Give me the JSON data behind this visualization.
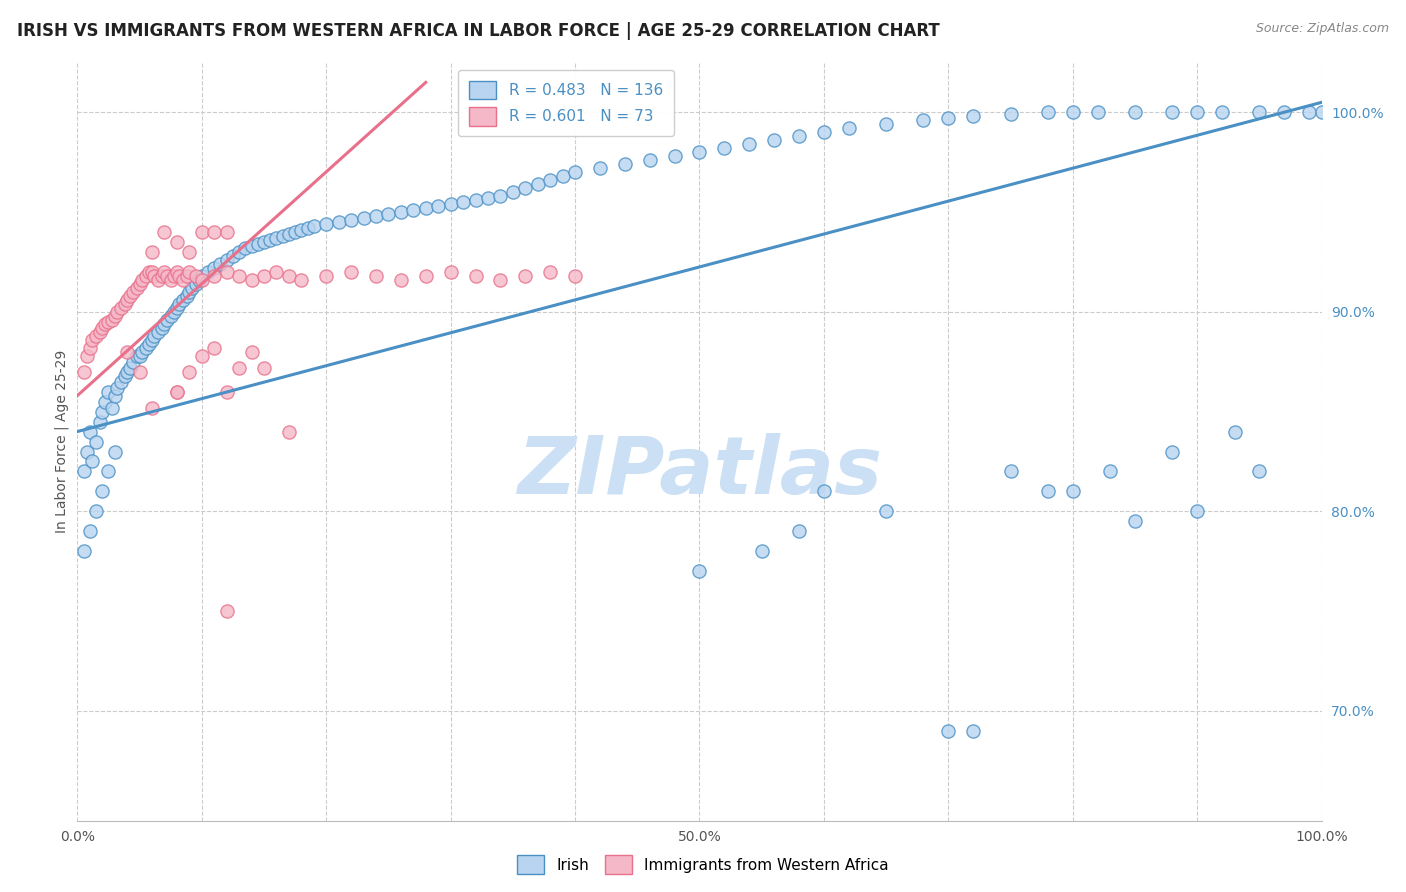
{
  "title": "IRISH VS IMMIGRANTS FROM WESTERN AFRICA IN LABOR FORCE | AGE 25-29 CORRELATION CHART",
  "source": "Source: ZipAtlas.com",
  "ylabel": "In Labor Force | Age 25-29",
  "xlim": [
    0.0,
    1.0
  ],
  "ylim": [
    0.645,
    1.025
  ],
  "x_ticks": [
    0.0,
    0.1,
    0.2,
    0.3,
    0.4,
    0.5,
    0.6,
    0.7,
    0.8,
    0.9,
    1.0
  ],
  "x_tick_labels": [
    "0.0%",
    "",
    "",
    "",
    "",
    "50.0%",
    "",
    "",
    "",
    "",
    "100.0%"
  ],
  "y_tick_vals_right": [
    0.7,
    0.8,
    0.9,
    1.0
  ],
  "blue_color": "#4a90c4",
  "pink_color": "#e8708a",
  "blue_scatter_color": "#b8d4f0",
  "pink_scatter_color": "#f5b8c8",
  "watermark": "ZIPatlas",
  "watermark_color": "#cce0f5",
  "blue_R": 0.483,
  "blue_N": 136,
  "pink_R": 0.601,
  "pink_N": 73,
  "blue_line_x": [
    0.0,
    1.0
  ],
  "blue_line_y": [
    0.84,
    1.005
  ],
  "pink_line_x": [
    0.0,
    0.28
  ],
  "pink_line_y": [
    0.858,
    1.015
  ],
  "blue_scatter_x": [
    0.005,
    0.008,
    0.01,
    0.012,
    0.015,
    0.018,
    0.02,
    0.022,
    0.025,
    0.028,
    0.03,
    0.032,
    0.035,
    0.038,
    0.04,
    0.042,
    0.045,
    0.048,
    0.05,
    0.052,
    0.055,
    0.058,
    0.06,
    0.062,
    0.065,
    0.068,
    0.07,
    0.072,
    0.075,
    0.078,
    0.08,
    0.082,
    0.085,
    0.088,
    0.09,
    0.092,
    0.095,
    0.098,
    0.1,
    0.105,
    0.11,
    0.115,
    0.12,
    0.125,
    0.13,
    0.135,
    0.14,
    0.145,
    0.15,
    0.155,
    0.16,
    0.165,
    0.17,
    0.175,
    0.18,
    0.185,
    0.19,
    0.2,
    0.21,
    0.22,
    0.23,
    0.24,
    0.25,
    0.26,
    0.27,
    0.28,
    0.29,
    0.3,
    0.31,
    0.32,
    0.33,
    0.34,
    0.35,
    0.36,
    0.37,
    0.38,
    0.39,
    0.4,
    0.42,
    0.44,
    0.46,
    0.48,
    0.5,
    0.52,
    0.54,
    0.56,
    0.58,
    0.6,
    0.62,
    0.65,
    0.68,
    0.7,
    0.72,
    0.75,
    0.78,
    0.8,
    0.82,
    0.85,
    0.88,
    0.9,
    0.92,
    0.95,
    0.97,
    0.99,
    1.0,
    0.6,
    0.65,
    0.7,
    0.75,
    0.8,
    0.85,
    0.9,
    0.95,
    0.72,
    0.78,
    0.83,
    0.88,
    0.93,
    0.5,
    0.55,
    0.58,
    0.005,
    0.01,
    0.015,
    0.02,
    0.025,
    0.03
  ],
  "blue_scatter_y": [
    0.82,
    0.83,
    0.84,
    0.825,
    0.835,
    0.845,
    0.85,
    0.855,
    0.86,
    0.852,
    0.858,
    0.862,
    0.865,
    0.868,
    0.87,
    0.872,
    0.875,
    0.878,
    0.878,
    0.88,
    0.882,
    0.884,
    0.886,
    0.888,
    0.89,
    0.892,
    0.894,
    0.896,
    0.898,
    0.9,
    0.902,
    0.904,
    0.906,
    0.908,
    0.91,
    0.912,
    0.914,
    0.916,
    0.918,
    0.92,
    0.922,
    0.924,
    0.926,
    0.928,
    0.93,
    0.932,
    0.933,
    0.934,
    0.935,
    0.936,
    0.937,
    0.938,
    0.939,
    0.94,
    0.941,
    0.942,
    0.943,
    0.944,
    0.945,
    0.946,
    0.947,
    0.948,
    0.949,
    0.95,
    0.951,
    0.952,
    0.953,
    0.954,
    0.955,
    0.956,
    0.957,
    0.958,
    0.96,
    0.962,
    0.964,
    0.966,
    0.968,
    0.97,
    0.972,
    0.974,
    0.976,
    0.978,
    0.98,
    0.982,
    0.984,
    0.986,
    0.988,
    0.99,
    0.992,
    0.994,
    0.996,
    0.997,
    0.998,
    0.999,
    1.0,
    1.0,
    1.0,
    1.0,
    1.0,
    1.0,
    1.0,
    1.0,
    1.0,
    1.0,
    1.0,
    0.81,
    0.8,
    0.69,
    0.82,
    0.81,
    0.795,
    0.8,
    0.82,
    0.69,
    0.81,
    0.82,
    0.83,
    0.84,
    0.77,
    0.78,
    0.79,
    0.78,
    0.79,
    0.8,
    0.81,
    0.82,
    0.83
  ],
  "pink_scatter_x": [
    0.005,
    0.008,
    0.01,
    0.012,
    0.015,
    0.018,
    0.02,
    0.022,
    0.025,
    0.028,
    0.03,
    0.032,
    0.035,
    0.038,
    0.04,
    0.042,
    0.045,
    0.048,
    0.05,
    0.052,
    0.055,
    0.058,
    0.06,
    0.062,
    0.065,
    0.068,
    0.07,
    0.072,
    0.075,
    0.078,
    0.08,
    0.082,
    0.085,
    0.088,
    0.09,
    0.095,
    0.1,
    0.11,
    0.12,
    0.13,
    0.14,
    0.15,
    0.16,
    0.17,
    0.18,
    0.2,
    0.22,
    0.24,
    0.26,
    0.28,
    0.3,
    0.32,
    0.34,
    0.36,
    0.38,
    0.4,
    0.12,
    0.17,
    0.08,
    0.04,
    0.05,
    0.06,
    0.08,
    0.09,
    0.1,
    0.11,
    0.12,
    0.13,
    0.14,
    0.15,
    0.06,
    0.07,
    0.08,
    0.09,
    0.1,
    0.11,
    0.12
  ],
  "pink_scatter_y": [
    0.87,
    0.878,
    0.882,
    0.886,
    0.888,
    0.89,
    0.892,
    0.894,
    0.895,
    0.896,
    0.898,
    0.9,
    0.902,
    0.904,
    0.906,
    0.908,
    0.91,
    0.912,
    0.914,
    0.916,
    0.918,
    0.92,
    0.92,
    0.918,
    0.916,
    0.918,
    0.92,
    0.918,
    0.916,
    0.918,
    0.92,
    0.918,
    0.916,
    0.918,
    0.92,
    0.918,
    0.916,
    0.918,
    0.92,
    0.918,
    0.916,
    0.918,
    0.92,
    0.918,
    0.916,
    0.918,
    0.92,
    0.918,
    0.916,
    0.918,
    0.92,
    0.918,
    0.916,
    0.918,
    0.92,
    0.918,
    0.75,
    0.84,
    0.86,
    0.88,
    0.87,
    0.852,
    0.86,
    0.87,
    0.878,
    0.882,
    0.86,
    0.872,
    0.88,
    0.872,
    0.93,
    0.94,
    0.935,
    0.93,
    0.94,
    0.94,
    0.94
  ]
}
